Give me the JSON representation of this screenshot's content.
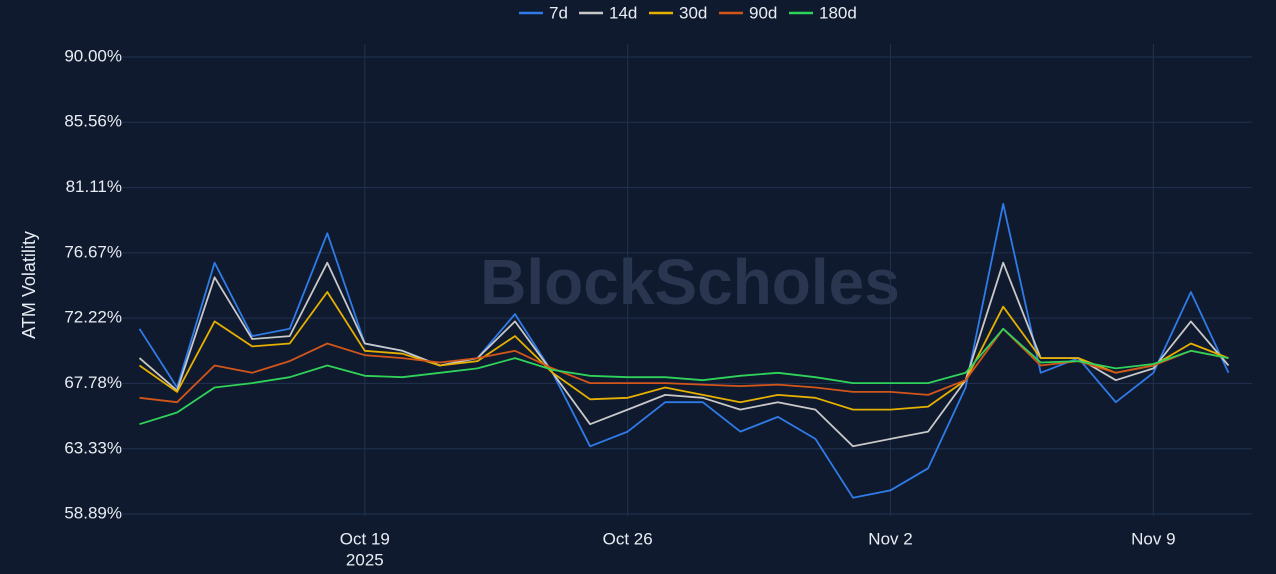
{
  "chart_data": {
    "type": "line",
    "watermark": "BlockScholes",
    "ylabel": "ATM Volatility",
    "x": [
      "2025-10-13",
      "2025-10-14",
      "2025-10-15",
      "2025-10-16",
      "2025-10-17",
      "2025-10-18",
      "2025-10-19",
      "2025-10-20",
      "2025-10-21",
      "2025-10-22",
      "2025-10-23",
      "2025-10-24",
      "2025-10-25",
      "2025-10-26",
      "2025-10-27",
      "2025-10-28",
      "2025-10-29",
      "2025-10-30",
      "2025-10-31",
      "2025-11-01",
      "2025-11-02",
      "2025-11-03",
      "2025-11-04",
      "2025-11-05",
      "2025-11-06",
      "2025-11-07",
      "2025-11-08",
      "2025-11-09",
      "2025-11-10",
      "2025-11-11"
    ],
    "series": [
      {
        "name": "7d",
        "color": "#2f7be8",
        "values": [
          71.5,
          67.5,
          76,
          71,
          71.5,
          78,
          70.5,
          70,
          69,
          69.5,
          72.5,
          68.5,
          63.5,
          64.5,
          66.5,
          66.5,
          64.5,
          65.5,
          64,
          60,
          60.5,
          62,
          67.5,
          80,
          68.5,
          69.5,
          66.5,
          68.5,
          74,
          68.5
        ]
      },
      {
        "name": "14d",
        "color": "#c8c8c8",
        "values": [
          69.5,
          67.3,
          75,
          70.8,
          71,
          76,
          70.5,
          70,
          69,
          69.5,
          72,
          68.5,
          65,
          66,
          67,
          66.8,
          66,
          66.5,
          66,
          63.5,
          64,
          64.5,
          68,
          76,
          69.5,
          69.5,
          68,
          68.8,
          72,
          69
        ]
      },
      {
        "name": "30d",
        "color": "#e6b000",
        "values": [
          69,
          67.2,
          72,
          70.3,
          70.5,
          74,
          70,
          69.8,
          69,
          69.3,
          71,
          68.5,
          66.7,
          66.8,
          67.5,
          67,
          66.5,
          67,
          66.8,
          66,
          66,
          66.2,
          68,
          73,
          69.5,
          69.5,
          68.5,
          69,
          70.5,
          69.5
        ]
      },
      {
        "name": "90d",
        "color": "#d2561a",
        "values": [
          66.8,
          66.5,
          69,
          68.5,
          69.3,
          70.5,
          69.7,
          69.5,
          69.2,
          69.5,
          70,
          68.8,
          67.8,
          67.8,
          67.8,
          67.7,
          67.6,
          67.7,
          67.5,
          67.2,
          67.2,
          67,
          68,
          71.5,
          69,
          69.3,
          68.5,
          69,
          70,
          69.5
        ]
      },
      {
        "name": "180d",
        "color": "#2fd35a",
        "values": [
          65,
          65.8,
          67.5,
          67.8,
          68.2,
          69,
          68.3,
          68.2,
          68.5,
          68.8,
          69.5,
          68.7,
          68.3,
          68.2,
          68.2,
          68,
          68.3,
          68.5,
          68.2,
          67.8,
          67.8,
          67.8,
          68.5,
          71.5,
          69.2,
          69.3,
          68.8,
          69.1,
          70,
          69.5
        ]
      }
    ],
    "xlim": [
      "2025-10-12",
      "2025-11-12"
    ],
    "xticks": [
      {
        "value": "2025-10-19",
        "label": "Oct 19"
      },
      {
        "value": "2025-10-26",
        "label": "Oct 26"
      },
      {
        "value": "2025-11-02",
        "label": "Nov 2"
      },
      {
        "value": "2025-11-09",
        "label": "Nov 9"
      }
    ],
    "x_year_label": "2025",
    "ylim": [
      58.89,
      90.0
    ],
    "yticks": [
      {
        "value": 58.89,
        "label": "58.89%"
      },
      {
        "value": 63.33,
        "label": "63.33%"
      },
      {
        "value": 67.78,
        "label": "67.78%"
      },
      {
        "value": 72.22,
        "label": "72.22%"
      },
      {
        "value": 76.67,
        "label": "76.67%"
      },
      {
        "value": 81.11,
        "label": "81.11%"
      },
      {
        "value": 85.56,
        "label": "85.56%"
      },
      {
        "value": 90.0,
        "label": "90.00%"
      }
    ],
    "grid": true,
    "legend": "top"
  }
}
